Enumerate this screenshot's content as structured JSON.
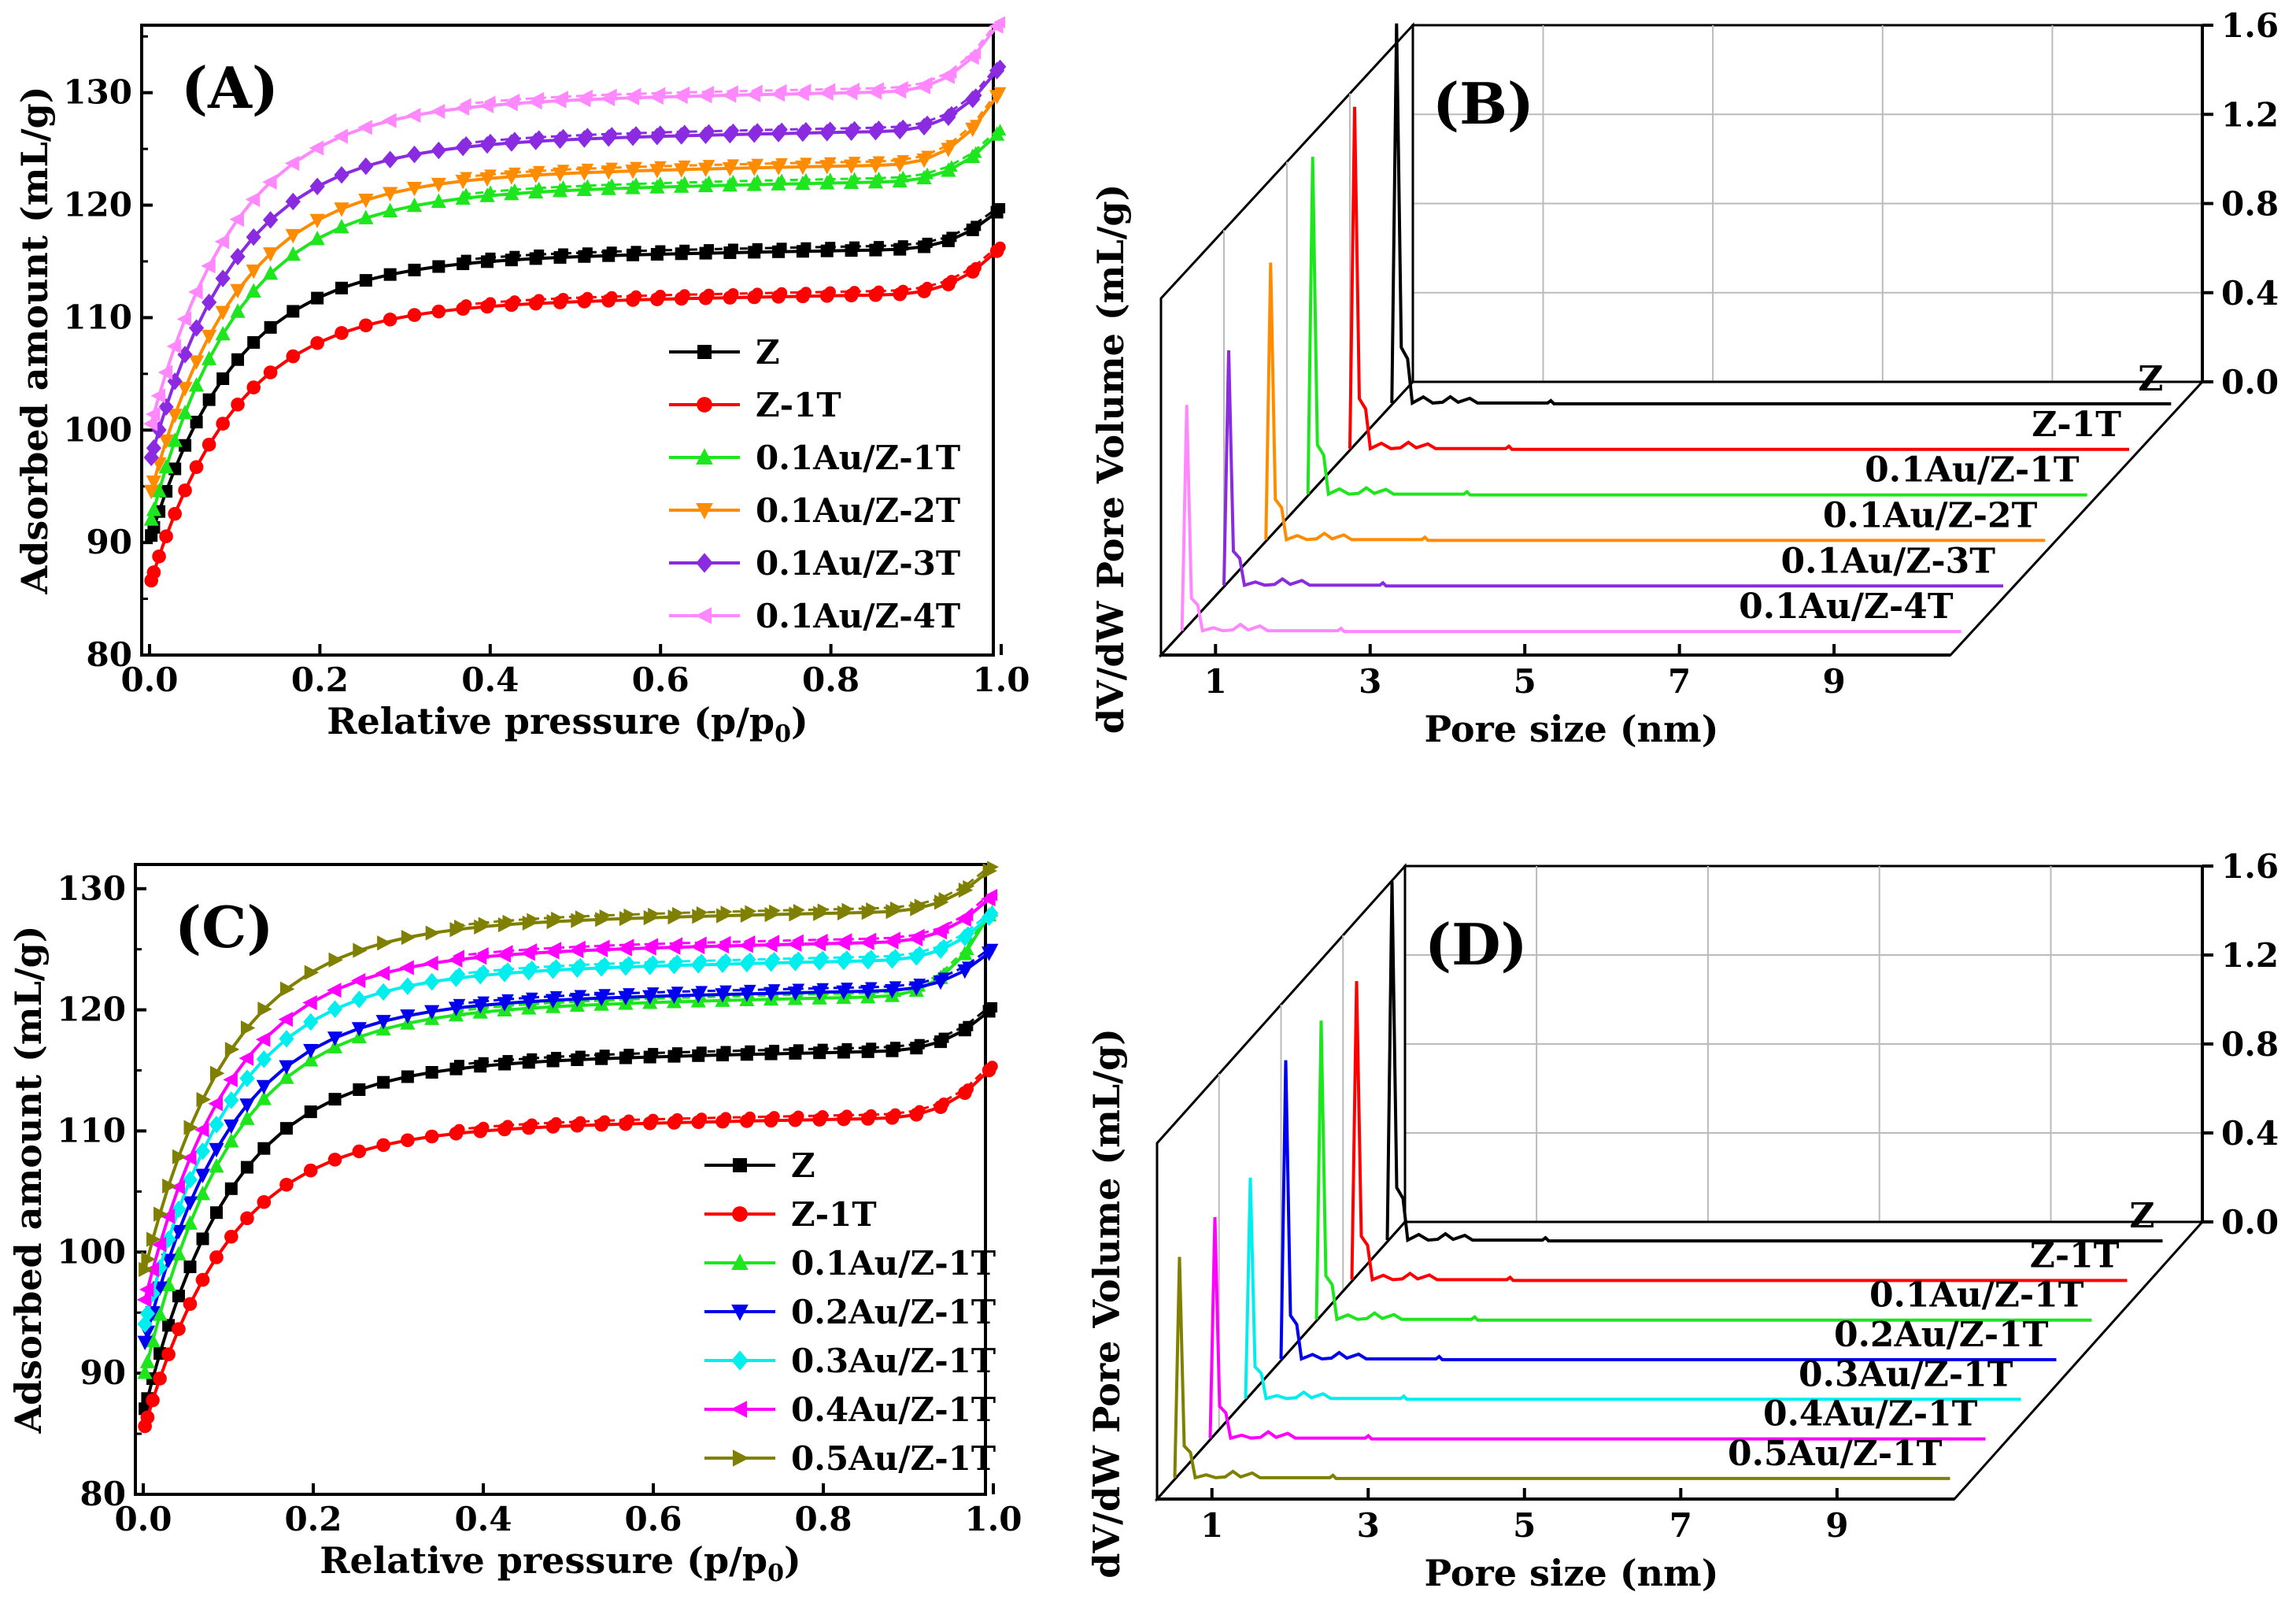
{
  "chart_data": [
    {
      "panel": "A",
      "type": "line",
      "panel_label": "(A)",
      "xlabel": "Relative pressure (p/p0)",
      "ylabel": "Adsorbed amount (mL/g)",
      "xlim": [
        0,
        1.0
      ],
      "ylim": [
        80,
        136
      ],
      "xticks": [
        "0.0",
        "0.2",
        "0.4",
        "0.6",
        "0.8",
        "1.0"
      ],
      "yticks": [
        "80",
        "90",
        "100",
        "110",
        "120",
        "130"
      ],
      "legend_position": "lower-right",
      "series": [
        {
          "name": "Z",
          "color": "#000000",
          "marker": "square",
          "low": 91.0,
          "plateau": 115.8,
          "end": 119.7
        },
        {
          "name": "Z-1T",
          "color": "#ff0000",
          "marker": "circle",
          "low": 87.0,
          "plateau": 111.8,
          "end": 116.3
        },
        {
          "name": "0.1Au/Z-1T",
          "color": "#1ee61e",
          "marker": "triangle-up",
          "low": 92.5,
          "plateau": 121.8,
          "end": 126.7
        },
        {
          "name": "0.1Au/Z-2T",
          "color": "#ff8c00",
          "marker": "triangle-down",
          "low": 95.0,
          "plateau": 123.3,
          "end": 130.3
        },
        {
          "name": "0.1Au/Z-3T",
          "color": "#8a2be2",
          "marker": "diamond",
          "low": 98.0,
          "plateau": 126.3,
          "end": 132.5
        },
        {
          "name": "0.1Au/Z-4T",
          "color": "#ff88ff",
          "marker": "triangle-left",
          "low": 101.0,
          "plateau": 129.8,
          "end": 136.5
        }
      ]
    },
    {
      "panel": "B",
      "type": "line",
      "panel_label": "(B)",
      "xlabel": "Pore size (nm)",
      "ylabel": "dV/dW Pore Volume (mL/g)",
      "xticks": [
        "1",
        "3",
        "5",
        "7",
        "9"
      ],
      "zticks": [
        "0.0",
        "0.4",
        "0.8",
        "1.2",
        "1.6"
      ],
      "zlim": [
        0,
        1.6
      ],
      "series": [
        {
          "name": "Z",
          "color": "#000000",
          "peak_height": 1.71
        },
        {
          "name": "Z-1T",
          "color": "#ff0000",
          "peak_height": 1.54
        },
        {
          "name": "0.1Au/Z-1T",
          "color": "#1ee61e",
          "peak_height": 1.52
        },
        {
          "name": "0.1Au/Z-2T",
          "color": "#ff8c00",
          "peak_height": 1.25
        },
        {
          "name": "0.1Au/Z-3T",
          "color": "#8a2be2",
          "peak_height": 1.06
        },
        {
          "name": "0.1Au/Z-4T",
          "color": "#ff88ff",
          "peak_height": 1.02
        }
      ]
    },
    {
      "panel": "C",
      "type": "line",
      "panel_label": "(C)",
      "xlabel": "Relative pressure (p/p0)",
      "ylabel": "Adsorbed amount (mL/g)",
      "xlim": [
        0,
        1.0
      ],
      "ylim": [
        80,
        132
      ],
      "xticks": [
        "0.0",
        "0.2",
        "0.4",
        "0.6",
        "0.8",
        "1.0"
      ],
      "yticks": [
        "80",
        "90",
        "100",
        "110",
        "120",
        "130"
      ],
      "legend_position": "lower-right",
      "series": [
        {
          "name": "Z",
          "color": "#000000",
          "marker": "square",
          "low": 87.5,
          "plateau": 116.3,
          "end": 120.2
        },
        {
          "name": "Z-1T",
          "color": "#ff0000",
          "marker": "circle",
          "low": 86.0,
          "plateau": 110.8,
          "end": 115.4
        },
        {
          "name": "0.1Au/Z-1T",
          "color": "#1ee61e",
          "marker": "triangle-up",
          "low": 90.5,
          "plateau": 120.8,
          "end": 128.5
        },
        {
          "name": "0.2Au/Z-1T",
          "color": "#0000ee",
          "marker": "triangle-down",
          "low": 93.0,
          "plateau": 121.3,
          "end": 125.0
        },
        {
          "name": "0.3Au/Z-1T",
          "color": "#00eeee",
          "marker": "diamond",
          "low": 94.5,
          "plateau": 123.8,
          "end": 128.0
        },
        {
          "name": "0.4Au/Z-1T",
          "color": "#ff00ff",
          "marker": "triangle-left",
          "low": 96.5,
          "plateau": 125.3,
          "end": 129.5
        },
        {
          "name": "0.5Au/Z-1T",
          "color": "#808000",
          "marker": "triangle-right",
          "low": 99.0,
          "plateau": 127.8,
          "end": 131.8
        }
      ]
    },
    {
      "panel": "D",
      "type": "line",
      "panel_label": "(D)",
      "xlabel": "Pore size (nm)",
      "ylabel": "dV/dW Pore Volume (mL/g)",
      "xticks": [
        "1",
        "3",
        "5",
        "7",
        "9"
      ],
      "zticks": [
        "0.0",
        "0.4",
        "0.8",
        "1.2",
        "1.6"
      ],
      "zlim": [
        0,
        1.6
      ],
      "series": [
        {
          "name": "Z",
          "color": "#000000",
          "peak_height": 1.62
        },
        {
          "name": "Z-1T",
          "color": "#ff0000",
          "peak_height": 1.35
        },
        {
          "name": "0.1Au/Z-1T",
          "color": "#1ee61e",
          "peak_height": 1.35
        },
        {
          "name": "0.2Au/Z-1T",
          "color": "#0000ee",
          "peak_height": 1.35
        },
        {
          "name": "0.3Au/Z-1T",
          "color": "#00eeee",
          "peak_height": 1.0
        },
        {
          "name": "0.4Au/Z-1T",
          "color": "#ff00ff",
          "peak_height": 1.0
        },
        {
          "name": "0.5Au/Z-1T",
          "color": "#808000",
          "peak_height": 1.0
        }
      ]
    }
  ]
}
